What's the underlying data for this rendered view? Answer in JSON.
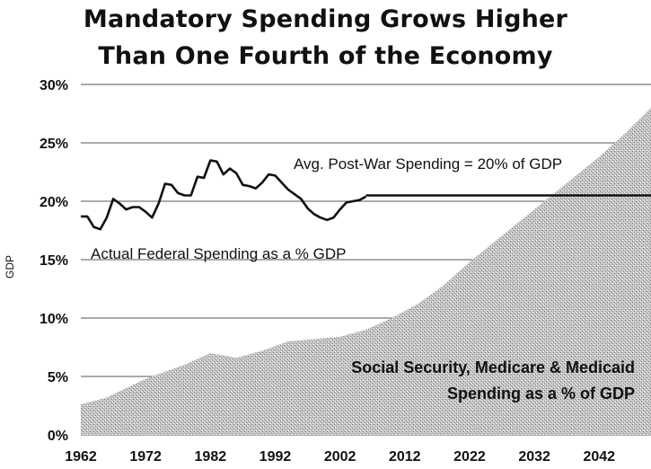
{
  "chart_data": {
    "type": "area",
    "title_line1": "Mandatory Spending Grows Higher",
    "title_line2": "Than One Fourth of the Economy",
    "ylabel": "GDP",
    "xlabel": "",
    "x_ticks": [
      "1962",
      "1972",
      "1982",
      "1992",
      "2002",
      "2012",
      "2022",
      "2032",
      "2042"
    ],
    "y_ticks": [
      "0%",
      "5%",
      "10%",
      "15%",
      "20%",
      "25%",
      "30%"
    ],
    "ylim": [
      0,
      30
    ],
    "xlim": [
      1962,
      2050
    ],
    "grid": "horizontal",
    "series": [
      {
        "type": "line",
        "color": "#111111",
        "x": [
          1962,
          1963,
          1964,
          1965,
          1966,
          1967,
          1968,
          1969,
          1970,
          1971,
          1972,
          1973,
          1974,
          1975,
          1976,
          1977,
          1978,
          1979,
          1980,
          1981,
          1982,
          1983,
          1984,
          1985,
          1986,
          1987,
          1988,
          1989,
          1990,
          1991,
          1992,
          1993,
          1994,
          1995,
          1996,
          1997,
          1998,
          1999,
          2000,
          2001,
          2002,
          2003,
          2004,
          2005,
          2006
        ],
        "y": [
          18.7,
          18.7,
          17.8,
          17.6,
          18.6,
          20.2,
          19.8,
          19.3,
          19.5,
          19.5,
          19.1,
          18.6,
          19.8,
          21.5,
          21.4,
          20.7,
          20.5,
          20.5,
          22.1,
          22.0,
          23.5,
          23.4,
          22.3,
          22.8,
          22.4,
          21.4,
          21.3,
          21.1,
          21.6,
          22.3,
          22.2,
          21.6,
          21.0,
          20.6,
          20.2,
          19.4,
          18.9,
          18.6,
          18.4,
          18.6,
          19.3,
          19.9,
          20.0,
          20.1,
          20.4
        ]
      },
      {
        "type": "line",
        "color": "#111111",
        "x": [
          2006,
          2050
        ],
        "y": [
          20.5,
          20.5
        ]
      },
      {
        "type": "area",
        "fill": "stippled-gray",
        "x": [
          1962,
          1966,
          1972,
          1978,
          1982,
          1986,
          1990,
          1994,
          1998,
          2002,
          2006,
          2010,
          2014,
          2018,
          2022,
          2026,
          2030,
          2034,
          2038,
          2042,
          2046,
          2050
        ],
        "y": [
          2.6,
          3.2,
          4.8,
          6.0,
          7.0,
          6.6,
          7.2,
          8.0,
          8.2,
          8.4,
          9.0,
          10.0,
          11.2,
          12.8,
          14.8,
          16.6,
          18.4,
          20.2,
          22.0,
          23.8,
          25.8,
          28.0
        ]
      }
    ],
    "annotations": {
      "avg_label": "Avg. Post-War Spending = 20% of GDP",
      "actual_label": "Actual Federal Spending as a % GDP",
      "area_label_line1": "Social Security, Medicare & Medicaid",
      "area_label_line2": "Spending as a % of GDP"
    }
  }
}
